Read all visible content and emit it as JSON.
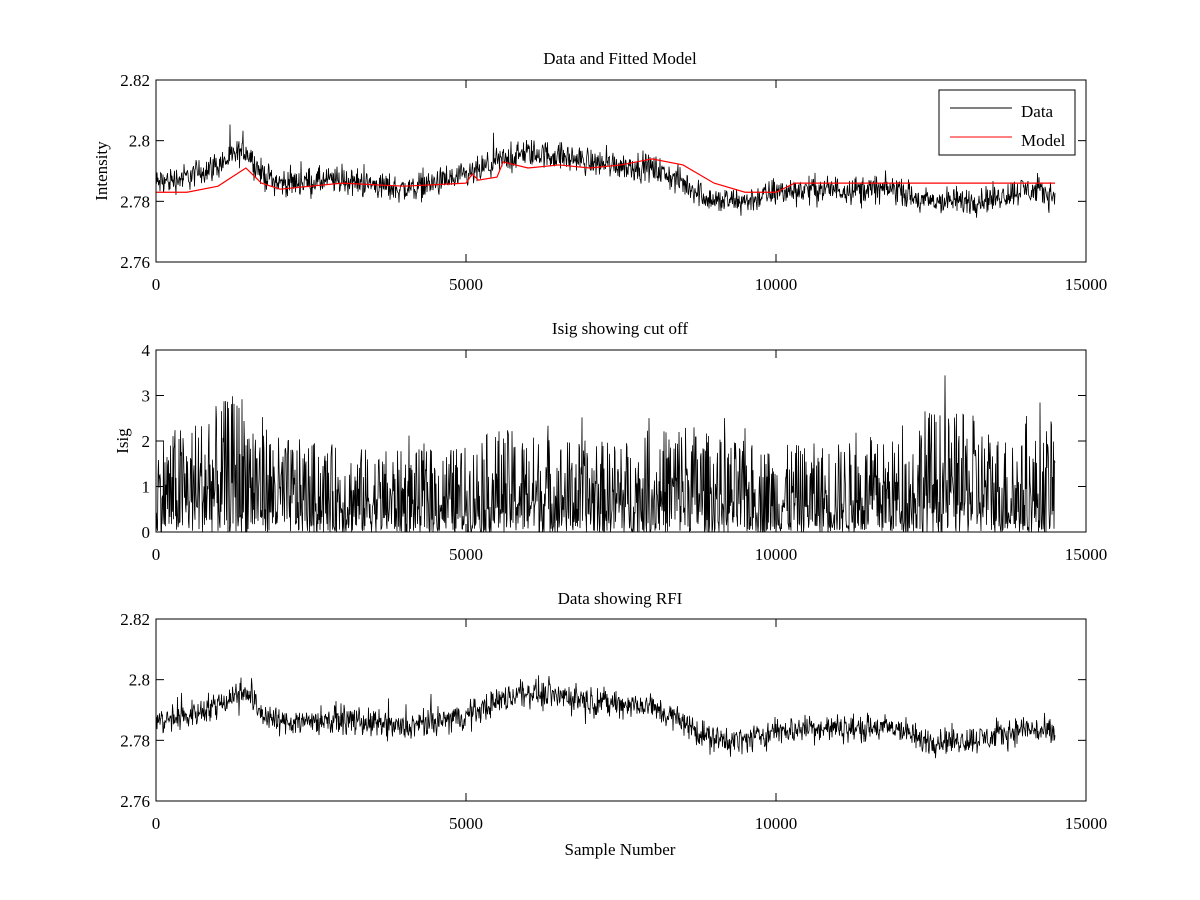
{
  "figure": {
    "colors": {
      "data": "#000000",
      "model": "#ff0000",
      "background": "#ffffff"
    }
  },
  "chart_data": [
    {
      "type": "line",
      "title": "Data and Fitted Model",
      "xlabel": "",
      "ylabel": "Intensity",
      "xlim": [
        0,
        15000
      ],
      "ylim": [
        2.76,
        2.82
      ],
      "xticks": [
        0,
        5000,
        10000,
        15000
      ],
      "yticks": [
        2.76,
        2.78,
        2.8,
        2.82
      ],
      "xtick_labels": [
        "0",
        "5000",
        "10000",
        "15000"
      ],
      "ytick_labels": [
        "2.76",
        "2.78",
        "2.8",
        "2.82"
      ],
      "legend": {
        "position": "top-right",
        "entries": [
          "Data",
          "Model"
        ]
      },
      "series": [
        {
          "name": "Data",
          "color": "#000000",
          "style": "noisy",
          "x": [
            0,
            500,
            1000,
            1450,
            1700,
            2000,
            3000,
            4000,
            5000,
            5500,
            6000,
            6500,
            7000,
            7500,
            8000,
            8500,
            9000,
            9500,
            10000,
            10500,
            11000,
            12000,
            12300,
            13000,
            13500,
            14000,
            14500
          ],
          "center": [
            2.786,
            2.788,
            2.792,
            2.797,
            2.789,
            2.786,
            2.787,
            2.784,
            2.788,
            2.793,
            2.796,
            2.795,
            2.793,
            2.792,
            2.791,
            2.786,
            2.78,
            2.78,
            2.783,
            2.784,
            2.784,
            2.784,
            2.78,
            2.78,
            2.781,
            2.784,
            2.782
          ],
          "spread": 0.005
        },
        {
          "name": "Model",
          "color": "#ff0000",
          "style": "smooth",
          "x": [
            0,
            500,
            1000,
            1450,
            1700,
            2000,
            3000,
            4000,
            5000,
            5100,
            5200,
            5500,
            5600,
            6000,
            6500,
            7000,
            7500,
            8000,
            8500,
            9000,
            9500,
            10000,
            10300,
            11000,
            12000,
            13000,
            14000,
            14500
          ],
          "values": [
            2.783,
            2.783,
            2.785,
            2.791,
            2.786,
            2.784,
            2.786,
            2.785,
            2.786,
            2.789,
            2.787,
            2.788,
            2.793,
            2.791,
            2.792,
            2.791,
            2.792,
            2.794,
            2.792,
            2.786,
            2.783,
            2.783,
            2.786,
            2.786,
            2.786,
            2.786,
            2.786,
            2.786
          ]
        }
      ]
    },
    {
      "type": "line",
      "title": "Isig showing cut off",
      "xlabel": "",
      "ylabel": "Isig",
      "xlim": [
        0,
        15000
      ],
      "ylim": [
        0,
        4
      ],
      "xticks": [
        0,
        5000,
        10000,
        15000
      ],
      "yticks": [
        0,
        1,
        2,
        3,
        4
      ],
      "xtick_labels": [
        "0",
        "5000",
        "10000",
        "15000"
      ],
      "ytick_labels": [
        "0",
        "1",
        "2",
        "3",
        "4"
      ],
      "series": [
        {
          "color": "#000000",
          "style": "spiky",
          "x": [
            0,
            500,
            1000,
            1400,
            1700,
            2000,
            3000,
            4000,
            5000,
            5500,
            6000,
            7000,
            8000,
            8500,
            9000,
            10000,
            11000,
            12200,
            12300,
            13000,
            13500,
            14000,
            14500
          ],
          "envelope": [
            2.2,
            2.4,
            2.8,
            3.2,
            2.6,
            2.1,
            1.9,
            1.8,
            1.9,
            2.3,
            2.2,
            2.0,
            2.1,
            2.6,
            2.1,
            1.9,
            2.0,
            2.1,
            2.8,
            2.6,
            2.3,
            2.0,
            2.5
          ]
        }
      ]
    },
    {
      "type": "line",
      "title": "Data showing RFI",
      "xlabel": "Sample Number",
      "ylabel": "",
      "xlim": [
        0,
        15000
      ],
      "ylim": [
        2.76,
        2.82
      ],
      "xticks": [
        0,
        5000,
        10000,
        15000
      ],
      "yticks": [
        2.76,
        2.78,
        2.8,
        2.82
      ],
      "xtick_labels": [
        "0",
        "5000",
        "10000",
        "15000"
      ],
      "ytick_labels": [
        "2.76",
        "2.78",
        "2.8",
        "2.82"
      ],
      "series": [
        {
          "color": "#000000",
          "style": "noisy",
          "x": [
            0,
            500,
            1000,
            1450,
            1700,
            2000,
            3000,
            4000,
            5000,
            5500,
            6000,
            6500,
            7000,
            7500,
            8000,
            8500,
            9000,
            9500,
            10000,
            10500,
            11000,
            12000,
            12300,
            13000,
            13500,
            14000,
            14500
          ],
          "center": [
            2.786,
            2.788,
            2.792,
            2.797,
            2.789,
            2.786,
            2.787,
            2.784,
            2.788,
            2.793,
            2.796,
            2.795,
            2.793,
            2.792,
            2.791,
            2.786,
            2.78,
            2.78,
            2.783,
            2.784,
            2.784,
            2.784,
            2.78,
            2.78,
            2.781,
            2.784,
            2.782
          ],
          "spread": 0.005
        }
      ]
    }
  ]
}
